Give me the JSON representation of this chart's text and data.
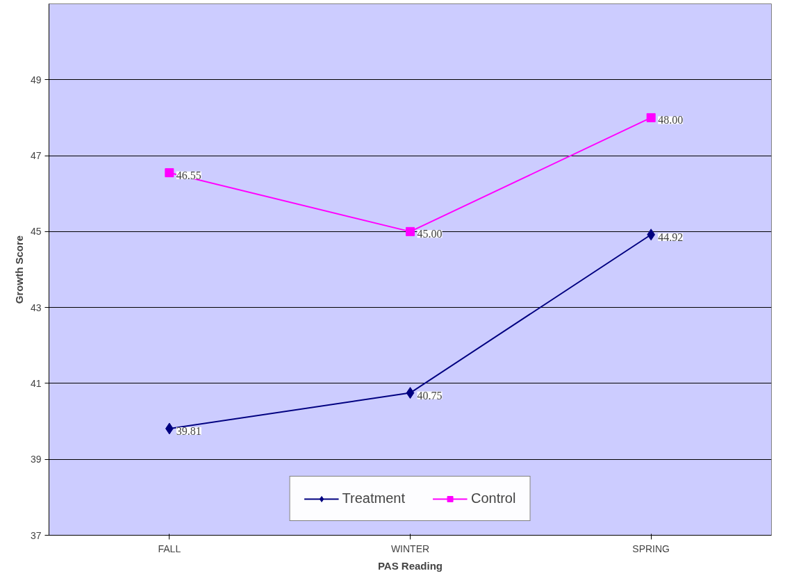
{
  "chart_data": {
    "type": "line",
    "xlabel": "PAS Reading",
    "ylabel": "Growth Score",
    "categories": [
      "FALL",
      "WINTER",
      "SPRING"
    ],
    "series": [
      {
        "name": "Treatment",
        "color": "#000080",
        "marker": "diamond",
        "values": [
          39.81,
          40.75,
          44.92
        ],
        "value_labels": [
          "39.81",
          "40.75",
          "44.92"
        ]
      },
      {
        "name": "Control",
        "color": "#ff00ff",
        "marker": "square",
        "values": [
          46.55,
          45.0,
          48.0
        ],
        "value_labels": [
          "46.55",
          "45.00",
          "48.00"
        ]
      }
    ],
    "ylim": [
      37,
      51
    ],
    "yticks": [
      37,
      39,
      41,
      43,
      45,
      47,
      49
    ],
    "grid": "y",
    "legend": "bottom",
    "line_style": "solid"
  }
}
